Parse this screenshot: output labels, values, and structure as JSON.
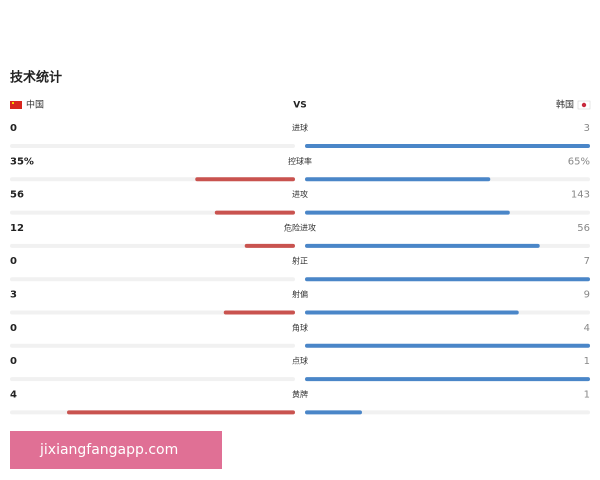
{
  "title": "技术统计",
  "header": {
    "home": "中国",
    "vs": "VS",
    "away": "韩国"
  },
  "rows": [
    {
      "name": "进球",
      "home": 0,
      "away": 3
    },
    {
      "name": "控球率",
      "home": 35,
      "away": 65,
      "home_label": "35%",
      "away_label": "65%"
    },
    {
      "name": "进攻",
      "home": 56,
      "away": 143
    },
    {
      "name": "危险进攻",
      "home": 12,
      "away": 56
    },
    {
      "name": "射正",
      "home": 0,
      "away": 7
    },
    {
      "name": "射偏",
      "home": 3,
      "away": 9
    },
    {
      "name": "角球",
      "home": 0,
      "away": 4
    },
    {
      "name": "点球",
      "home": 0,
      "away": 1
    },
    {
      "name": "黄牌",
      "home": 4,
      "away": 1
    }
  ],
  "watermark": "jixiangfangapp.com"
}
